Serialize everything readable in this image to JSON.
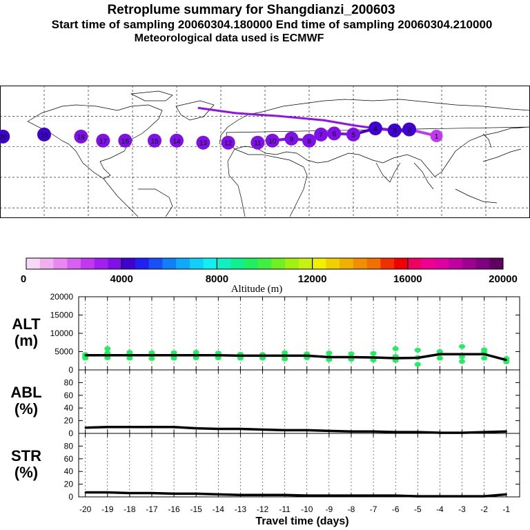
{
  "header": {
    "title": "Retroplume summary for Shangdianzi_200603",
    "sampling": "Start time of sampling 20060304.180000     End time of sampling 20060304.210000",
    "met": "Meteorological data used is ECMWF"
  },
  "map": {
    "day_markers": [
      {
        "label": "1",
        "lon": 116.5,
        "lat": 40.6,
        "alt": 2800
      },
      {
        "label": "2",
        "lon": 98,
        "lat": 47,
        "alt": 4300
      },
      {
        "label": "3",
        "lon": 88,
        "lat": 46,
        "alt": 4000
      },
      {
        "label": "4",
        "lon": 75,
        "lat": 48,
        "alt": 4200
      },
      {
        "label": "5",
        "lon": 60,
        "lat": 42,
        "alt": 3800
      },
      {
        "label": "6",
        "lon": 47,
        "lat": 43,
        "alt": 3700
      },
      {
        "label": "7",
        "lon": 38,
        "lat": 42,
        "alt": 3600
      },
      {
        "label": "8",
        "lon": 30,
        "lat": 36,
        "alt": 3500
      },
      {
        "label": "9",
        "lon": 18,
        "lat": 38,
        "alt": 3700
      },
      {
        "label": "10",
        "lon": 5,
        "lat": 36,
        "alt": 3700
      },
      {
        "label": "11",
        "lon": -5,
        "lat": 34,
        "alt": 3800
      },
      {
        "label": "12",
        "lon": -25,
        "lat": 34,
        "alt": 3800
      },
      {
        "label": "13",
        "lon": -42,
        "lat": 34,
        "alt": 3800
      },
      {
        "label": "14",
        "lon": -60,
        "lat": 36,
        "alt": 3900
      },
      {
        "label": "15",
        "lon": -75,
        "lat": 36,
        "alt": 3900
      },
      {
        "label": "16",
        "lon": -95,
        "lat": 36,
        "alt": 3900
      },
      {
        "label": "17",
        "lon": -110,
        "lat": 36,
        "alt": 3900
      },
      {
        "label": "18",
        "lon": -125,
        "lat": 40,
        "alt": 3900
      },
      {
        "label": "19",
        "lon": -150,
        "lat": 42,
        "alt": 4000
      },
      {
        "label": "20",
        "lon": -178,
        "lat": 40,
        "alt": 4000
      }
    ]
  },
  "colorbar": {
    "tick_labels": [
      "0",
      "4000",
      "8000",
      "12000",
      "16000",
      "20000"
    ],
    "title": "Altitude (m)",
    "colors": [
      "#f8d8f8",
      "#f0b0f0",
      "#e888f0",
      "#d860f0",
      "#c038f0",
      "#a020f0",
      "#8010e8",
      "#4000d0",
      "#2020f0",
      "#1850f8",
      "#1080f8",
      "#10a8f8",
      "#10d0f8",
      "#10f0f0",
      "#10f0c0",
      "#10f090",
      "#20f060",
      "#40f040",
      "#70f020",
      "#a0f010",
      "#c8f010",
      "#f0f000",
      "#f0d000",
      "#f0b000",
      "#f09000",
      "#f07000",
      "#f03000",
      "#f00000",
      "#f00060",
      "#f00090",
      "#e000a0",
      "#c000a0",
      "#a00090",
      "#800080",
      "#600060"
    ]
  },
  "chart_data": [
    {
      "type": "line",
      "name": "ALT",
      "ylabel": "ALT\n(m)",
      "ylabel_parts": [
        "ALT",
        "(m)"
      ],
      "ylim": [
        0,
        20000
      ],
      "yticks": [
        "20000",
        "15000",
        "10000",
        "5000",
        "0"
      ],
      "x": [
        -20,
        -19,
        -18,
        -17,
        -16,
        -15,
        -14,
        -13,
        -12,
        -11,
        -10,
        -9,
        -8,
        -7,
        -6,
        -5,
        -4,
        -3,
        -2,
        -1
      ],
      "values": [
        4000,
        4000,
        4000,
        4000,
        4000,
        4000,
        4000,
        3900,
        3900,
        3900,
        3900,
        3500,
        3500,
        3400,
        3200,
        3300,
        4300,
        4300,
        4300,
        2700
      ],
      "scatter": [
        [
          -20,
          3200
        ],
        [
          -20,
          4200
        ],
        [
          -20,
          3700
        ],
        [
          -19,
          5800
        ],
        [
          -19,
          4600
        ],
        [
          -19,
          3300
        ],
        [
          -18,
          4800
        ],
        [
          -18,
          4300
        ],
        [
          -18,
          3200
        ],
        [
          -17,
          4700
        ],
        [
          -17,
          4200
        ],
        [
          -17,
          3100
        ],
        [
          -16,
          4700
        ],
        [
          -16,
          3700
        ],
        [
          -16,
          3200
        ],
        [
          -15,
          4800
        ],
        [
          -15,
          4100
        ],
        [
          -15,
          3300
        ],
        [
          -14,
          4600
        ],
        [
          -14,
          3800
        ],
        [
          -14,
          3300
        ],
        [
          -13,
          4300
        ],
        [
          -13,
          3600
        ],
        [
          -13,
          3200
        ],
        [
          -12,
          4200
        ],
        [
          -12,
          3700
        ],
        [
          -12,
          3200
        ],
        [
          -11,
          4700
        ],
        [
          -11,
          3800
        ],
        [
          -11,
          3000
        ],
        [
          -10,
          4400
        ],
        [
          -10,
          3700
        ],
        [
          -10,
          3300
        ],
        [
          -9,
          4600
        ],
        [
          -9,
          3500
        ],
        [
          -9,
          2800
        ],
        [
          -8,
          4400
        ],
        [
          -8,
          3300
        ],
        [
          -8,
          2900
        ],
        [
          -7,
          4500
        ],
        [
          -7,
          3200
        ],
        [
          -7,
          2700
        ],
        [
          -6,
          5800
        ],
        [
          -6,
          3700
        ],
        [
          -6,
          2600
        ],
        [
          -5,
          5400
        ],
        [
          -5,
          3400
        ],
        [
          -5,
          1500
        ],
        [
          -4,
          5000
        ],
        [
          -4,
          4400
        ],
        [
          -4,
          3200
        ],
        [
          -3,
          6400
        ],
        [
          -3,
          3600
        ],
        [
          -3,
          2300
        ],
        [
          -2,
          5500
        ],
        [
          -2,
          4800
        ],
        [
          -2,
          3200
        ],
        [
          -1,
          3100
        ],
        [
          -1,
          2600
        ],
        [
          -1,
          2200
        ]
      ]
    },
    {
      "type": "line",
      "name": "ABL",
      "ylabel": "ABL\n(%)",
      "ylabel_parts": [
        "ABL",
        "(%)"
      ],
      "ylim": [
        0,
        100
      ],
      "yticks": [
        "80",
        "60",
        "40",
        "20",
        "0"
      ],
      "x": [
        -20,
        -19,
        -18,
        -17,
        -16,
        -15,
        -14,
        -13,
        -12,
        -11,
        -10,
        -9,
        -8,
        -7,
        -6,
        -5,
        -4,
        -3,
        -2,
        -1
      ],
      "values": [
        9,
        10,
        10,
        10,
        10,
        8,
        7,
        7,
        6,
        5,
        5,
        4,
        3,
        3,
        2,
        2,
        1,
        1,
        2,
        3
      ]
    },
    {
      "type": "line",
      "name": "STR",
      "ylabel": "STR\n(%)",
      "ylabel_parts": [
        "STR",
        "(%)"
      ],
      "ylim": [
        0,
        100
      ],
      "yticks": [
        "80",
        "60",
        "40",
        "20",
        "0"
      ],
      "x": [
        -20,
        -19,
        -18,
        -17,
        -16,
        -15,
        -14,
        -13,
        -12,
        -11,
        -10,
        -9,
        -8,
        -7,
        -6,
        -5,
        -4,
        -3,
        -2,
        -1
      ],
      "values": [
        7,
        7,
        6,
        6,
        5,
        5,
        4,
        3,
        3,
        3,
        2,
        2,
        2,
        2,
        2,
        1,
        1,
        1,
        1,
        4
      ],
      "xlabel": "Travel time (days)",
      "xticks": [
        "-20",
        "-19",
        "-18",
        "-17",
        "-16",
        "-15",
        "-14",
        "-13",
        "-12",
        "-11",
        "-10",
        "-9",
        "-8",
        "-7",
        "-6",
        "-5",
        "-4",
        "-3",
        "-2",
        "-1"
      ]
    }
  ]
}
